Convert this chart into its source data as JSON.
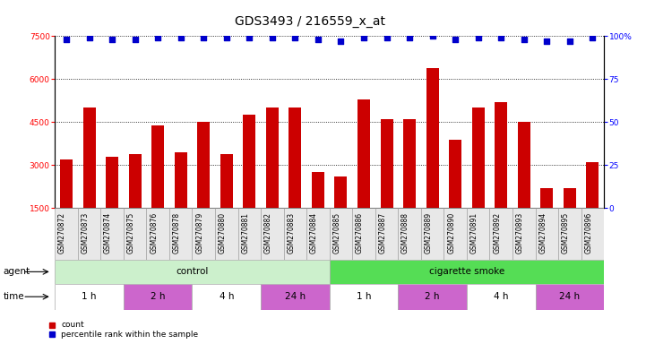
{
  "title": "GDS3493 / 216559_x_at",
  "samples": [
    "GSM270872",
    "GSM270873",
    "GSM270874",
    "GSM270875",
    "GSM270876",
    "GSM270878",
    "GSM270879",
    "GSM270880",
    "GSM270881",
    "GSM270882",
    "GSM270883",
    "GSM270884",
    "GSM270885",
    "GSM270886",
    "GSM270887",
    "GSM270888",
    "GSM270889",
    "GSM270890",
    "GSM270891",
    "GSM270892",
    "GSM270893",
    "GSM270894",
    "GSM270895",
    "GSM270896"
  ],
  "bar_values": [
    3200,
    5000,
    3300,
    3400,
    4400,
    3450,
    4500,
    3400,
    4750,
    5000,
    5000,
    2750,
    2600,
    5300,
    4600,
    4600,
    6400,
    3900,
    5000,
    5200,
    4500,
    2200,
    2200,
    3100
  ],
  "percentile_all": [
    98,
    99,
    98,
    98,
    99,
    99,
    99,
    99,
    99,
    99,
    99,
    98,
    97,
    99,
    99,
    99,
    100,
    98,
    99,
    99,
    98,
    97,
    97,
    99
  ],
  "bar_color": "#cc0000",
  "dot_color": "#0000cc",
  "ylim_left": [
    1500,
    7500
  ],
  "ylim_right": [
    0,
    100
  ],
  "yticks_left": [
    1500,
    3000,
    4500,
    6000,
    7500
  ],
  "yticks_right": [
    0,
    25,
    50,
    75,
    100
  ],
  "agent_groups": [
    {
      "label": "control",
      "start": 0,
      "end": 12,
      "color": "#ccf0cc"
    },
    {
      "label": "cigarette smoke",
      "start": 12,
      "end": 24,
      "color": "#55dd55"
    }
  ],
  "time_groups": [
    {
      "label": "1 h",
      "start": 0,
      "end": 3,
      "color": "#ffffff"
    },
    {
      "label": "2 h",
      "start": 3,
      "end": 6,
      "color": "#cc66cc"
    },
    {
      "label": "4 h",
      "start": 6,
      "end": 9,
      "color": "#ffffff"
    },
    {
      "label": "24 h",
      "start": 9,
      "end": 12,
      "color": "#cc66cc"
    },
    {
      "label": "1 h",
      "start": 12,
      "end": 15,
      "color": "#ffffff"
    },
    {
      "label": "2 h",
      "start": 15,
      "end": 18,
      "color": "#cc66cc"
    },
    {
      "label": "4 h",
      "start": 18,
      "end": 21,
      "color": "#ffffff"
    },
    {
      "label": "24 h",
      "start": 21,
      "end": 24,
      "color": "#cc66cc"
    }
  ],
  "background_color": "#ffffff",
  "title_fontsize": 10,
  "tick_fontsize": 6.5,
  "bar_label_fontsize": 5.5,
  "annot_fontsize": 7.5
}
